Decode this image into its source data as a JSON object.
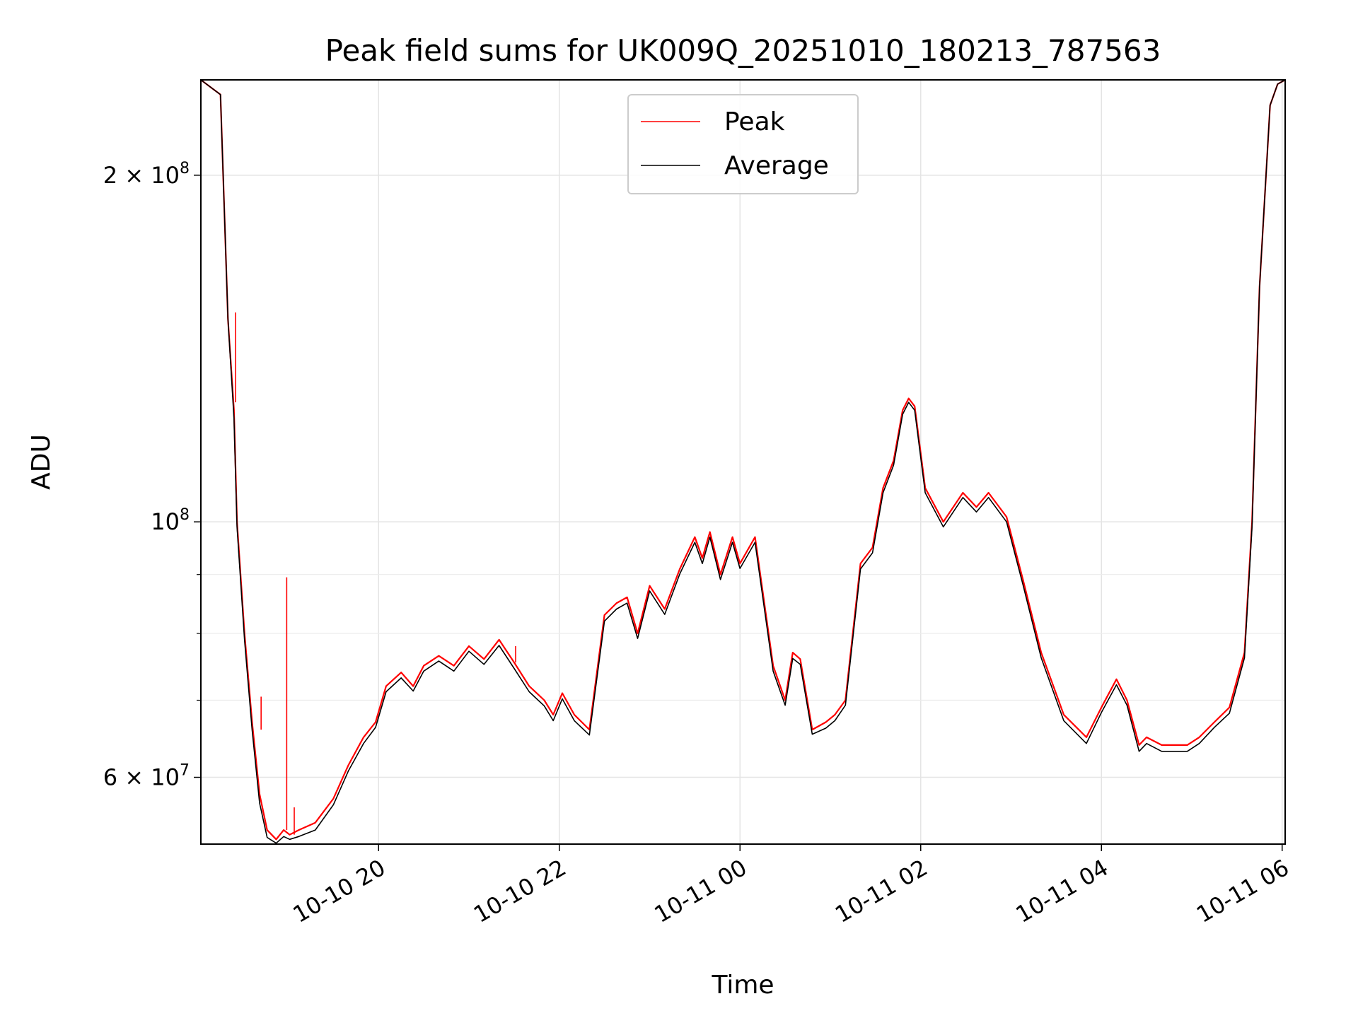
{
  "chart_data": {
    "type": "line",
    "title": "Peak field sums for UK009Q_20251010_180213_787563",
    "xlabel": "Time",
    "ylabel": "ADU",
    "xlim": [
      "2025-10-10 18:02",
      "2025-10-11 06:02"
    ],
    "ylim": [
      52500000,
      242000000
    ],
    "yscale": "log",
    "grid": true,
    "legend_placement": "upper center",
    "x_ticks": [
      {
        "value": "2025-10-10 20:00",
        "label": "10-10 20"
      },
      {
        "value": "2025-10-10 22:00",
        "label": "10-10 22"
      },
      {
        "value": "2025-10-11 00:00",
        "label": "10-11 00"
      },
      {
        "value": "2025-10-11 02:00",
        "label": "10-11 02"
      },
      {
        "value": "2025-10-11 04:00",
        "label": "10-11 04"
      },
      {
        "value": "2025-10-11 06:00",
        "label": "10-11 06"
      }
    ],
    "y_ticks": [
      {
        "value": 60000000,
        "mantissa": "6",
        "exponent": "7"
      },
      {
        "value": 100000000,
        "mantissa": "",
        "exponent": "8"
      },
      {
        "value": 200000000,
        "mantissa": "2",
        "exponent": "8"
      }
    ],
    "series": [
      {
        "name": "Peak",
        "color": "#ff0000",
        "x": [
          "2025-10-10 18:02",
          "2025-10-10 18:15",
          "2025-10-10 18:20",
          "2025-10-10 18:24",
          "2025-10-10 18:26",
          "2025-10-10 18:31",
          "2025-10-10 18:36",
          "2025-10-10 18:41",
          "2025-10-10 18:46",
          "2025-10-10 18:52",
          "2025-10-10 18:57",
          "2025-10-10 19:01",
          "2025-10-10 19:07",
          "2025-10-10 19:18",
          "2025-10-10 19:30",
          "2025-10-10 19:40",
          "2025-10-10 19:50",
          "2025-10-10 19:58",
          "2025-10-10 20:05",
          "2025-10-10 20:15",
          "2025-10-10 20:23",
          "2025-10-10 20:30",
          "2025-10-10 20:40",
          "2025-10-10 20:50",
          "2025-10-10 21:00",
          "2025-10-10 21:10",
          "2025-10-10 21:20",
          "2025-10-10 21:30",
          "2025-10-10 21:40",
          "2025-10-10 21:50",
          "2025-10-10 21:56",
          "2025-10-10 22:02",
          "2025-10-10 22:10",
          "2025-10-10 22:20",
          "2025-10-10 22:30",
          "2025-10-10 22:38",
          "2025-10-10 22:45",
          "2025-10-10 22:52",
          "2025-10-10 23:00",
          "2025-10-10 23:10",
          "2025-10-10 23:20",
          "2025-10-10 23:30",
          "2025-10-10 23:35",
          "2025-10-10 23:40",
          "2025-10-10 23:47",
          "2025-10-10 23:55",
          "2025-10-11 00:00",
          "2025-10-11 00:10",
          "2025-10-11 00:22",
          "2025-10-11 00:30",
          "2025-10-11 00:35",
          "2025-10-11 00:40",
          "2025-10-11 00:48",
          "2025-10-11 00:57",
          "2025-10-11 01:03",
          "2025-10-11 01:10",
          "2025-10-11 01:20",
          "2025-10-11 01:28",
          "2025-10-11 01:35",
          "2025-10-11 01:42",
          "2025-10-11 01:48",
          "2025-10-11 01:52",
          "2025-10-11 01:56",
          "2025-10-11 02:03",
          "2025-10-11 02:15",
          "2025-10-11 02:28",
          "2025-10-11 02:37",
          "2025-10-11 02:45",
          "2025-10-11 02:57",
          "2025-10-11 03:08",
          "2025-10-11 03:20",
          "2025-10-11 03:35",
          "2025-10-11 03:50",
          "2025-10-11 04:00",
          "2025-10-11 04:10",
          "2025-10-11 04:17",
          "2025-10-11 04:25",
          "2025-10-11 04:30",
          "2025-10-11 04:40",
          "2025-10-11 04:50",
          "2025-10-11 04:57",
          "2025-10-11 05:05",
          "2025-10-11 05:15",
          "2025-10-11 05:25",
          "2025-10-11 05:35",
          "2025-10-11 05:40",
          "2025-10-11 05:45",
          "2025-10-11 05:52",
          "2025-10-11 05:57",
          "2025-10-11 06:02"
        ],
        "values": [
          242000000,
          235000000,
          150000000,
          125000000,
          100000000,
          80000000,
          67000000,
          58000000,
          54000000,
          53000000,
          54000000,
          53500000,
          54000000,
          54800000,
          57500000,
          61500000,
          65000000,
          67000000,
          72000000,
          74000000,
          72000000,
          75000000,
          76500000,
          75000000,
          78000000,
          76000000,
          79000000,
          75500000,
          72000000,
          70000000,
          68000000,
          71000000,
          68000000,
          66000000,
          83000000,
          85000000,
          86000000,
          80000000,
          88000000,
          84000000,
          91000000,
          97000000,
          93000000,
          98000000,
          90000000,
          97000000,
          92000000,
          97000000,
          75000000,
          70000000,
          77000000,
          76000000,
          66000000,
          67000000,
          68000000,
          70000000,
          92000000,
          95000000,
          107000000,
          113000000,
          125000000,
          128000000,
          126000000,
          107000000,
          100000000,
          106000000,
          103000000,
          106000000,
          101000000,
          89000000,
          77000000,
          68000000,
          65000000,
          69000000,
          73000000,
          70000000,
          64000000,
          65000000,
          64000000,
          64000000,
          64000000,
          65000000,
          67000000,
          69000000,
          77000000,
          100000000,
          160000000,
          230000000,
          240000000,
          242000000
        ]
      },
      {
        "name": "Average",
        "color": "#000000",
        "x": [
          "2025-10-10 18:02",
          "2025-10-10 18:15",
          "2025-10-10 18:20",
          "2025-10-10 18:24",
          "2025-10-10 18:26",
          "2025-10-10 18:31",
          "2025-10-10 18:36",
          "2025-10-10 18:41",
          "2025-10-10 18:46",
          "2025-10-10 18:52",
          "2025-10-10 18:57",
          "2025-10-10 19:01",
          "2025-10-10 19:07",
          "2025-10-10 19:18",
          "2025-10-10 19:30",
          "2025-10-10 19:40",
          "2025-10-10 19:50",
          "2025-10-10 19:58",
          "2025-10-10 20:05",
          "2025-10-10 20:15",
          "2025-10-10 20:23",
          "2025-10-10 20:30",
          "2025-10-10 20:40",
          "2025-10-10 20:50",
          "2025-10-10 21:00",
          "2025-10-10 21:10",
          "2025-10-10 21:20",
          "2025-10-10 21:30",
          "2025-10-10 21:40",
          "2025-10-10 21:50",
          "2025-10-10 21:56",
          "2025-10-10 22:02",
          "2025-10-10 22:10",
          "2025-10-10 22:20",
          "2025-10-10 22:30",
          "2025-10-10 22:38",
          "2025-10-10 22:45",
          "2025-10-10 22:52",
          "2025-10-10 23:00",
          "2025-10-10 23:10",
          "2025-10-10 23:20",
          "2025-10-10 23:30",
          "2025-10-10 23:35",
          "2025-10-10 23:40",
          "2025-10-10 23:47",
          "2025-10-10 23:55",
          "2025-10-11 00:00",
          "2025-10-11 00:10",
          "2025-10-11 00:22",
          "2025-10-11 00:30",
          "2025-10-11 00:35",
          "2025-10-11 00:40",
          "2025-10-11 00:48",
          "2025-10-11 00:57",
          "2025-10-11 01:03",
          "2025-10-11 01:10",
          "2025-10-11 01:20",
          "2025-10-11 01:28",
          "2025-10-11 01:35",
          "2025-10-11 01:42",
          "2025-10-11 01:48",
          "2025-10-11 01:52",
          "2025-10-11 01:56",
          "2025-10-11 02:03",
          "2025-10-11 02:15",
          "2025-10-11 02:28",
          "2025-10-11 02:37",
          "2025-10-11 02:45",
          "2025-10-11 02:57",
          "2025-10-11 03:08",
          "2025-10-11 03:20",
          "2025-10-11 03:35",
          "2025-10-11 03:50",
          "2025-10-11 04:00",
          "2025-10-11 04:10",
          "2025-10-11 04:17",
          "2025-10-11 04:25",
          "2025-10-11 04:30",
          "2025-10-11 04:40",
          "2025-10-11 04:50",
          "2025-10-11 04:57",
          "2025-10-11 05:05",
          "2025-10-11 05:15",
          "2025-10-11 05:25",
          "2025-10-11 05:35",
          "2025-10-11 05:40",
          "2025-10-11 05:45",
          "2025-10-11 05:52",
          "2025-10-11 05:57",
          "2025-10-11 06:02"
        ],
        "values": [
          242000000,
          235000000,
          150000000,
          123000000,
          99000000,
          79000000,
          66000000,
          57000000,
          53200000,
          52600000,
          53300000,
          53000000,
          53300000,
          54000000,
          56800000,
          60800000,
          64200000,
          66300000,
          71200000,
          73200000,
          71300000,
          74200000,
          75700000,
          74200000,
          77200000,
          75200000,
          78100000,
          74600000,
          71200000,
          69200000,
          67200000,
          70200000,
          67200000,
          65300000,
          82000000,
          84000000,
          85000000,
          79200000,
          87100000,
          83100000,
          90100000,
          96000000,
          92000000,
          97000000,
          89100000,
          96000000,
          91100000,
          96000000,
          74200000,
          69300000,
          76100000,
          75200000,
          65400000,
          66200000,
          67200000,
          69300000,
          91000000,
          94000000,
          106000000,
          112000000,
          124000000,
          127000000,
          125000000,
          106000000,
          99000000,
          105000000,
          102000000,
          105000000,
          100000000,
          88100000,
          76200000,
          67200000,
          64200000,
          68300000,
          72200000,
          69300000,
          63200000,
          64200000,
          63200000,
          63200000,
          63200000,
          64200000,
          66300000,
          68200000,
          76200000,
          99000000,
          160000000,
          230000000,
          240000000,
          242000000
        ]
      }
    ],
    "annotations": [
      {
        "type": "spike",
        "series": "Peak",
        "x": "2025-10-10 18:25",
        "values": [
          127000000,
          152000000
        ]
      },
      {
        "type": "spike",
        "series": "Peak",
        "x": "2025-10-10 18:42",
        "values": [
          66000000,
          70500000
        ]
      },
      {
        "type": "spike",
        "series": "Peak",
        "x": "2025-10-10 18:59",
        "values": [
          54000000,
          89500000
        ]
      },
      {
        "type": "spike",
        "series": "Peak",
        "x": "2025-10-10 19:04",
        "values": [
          53500000,
          56500000
        ]
      },
      {
        "type": "spike",
        "series": "Peak",
        "x": "2025-10-10 21:31",
        "values": [
          75500000,
          78000000
        ]
      }
    ]
  }
}
